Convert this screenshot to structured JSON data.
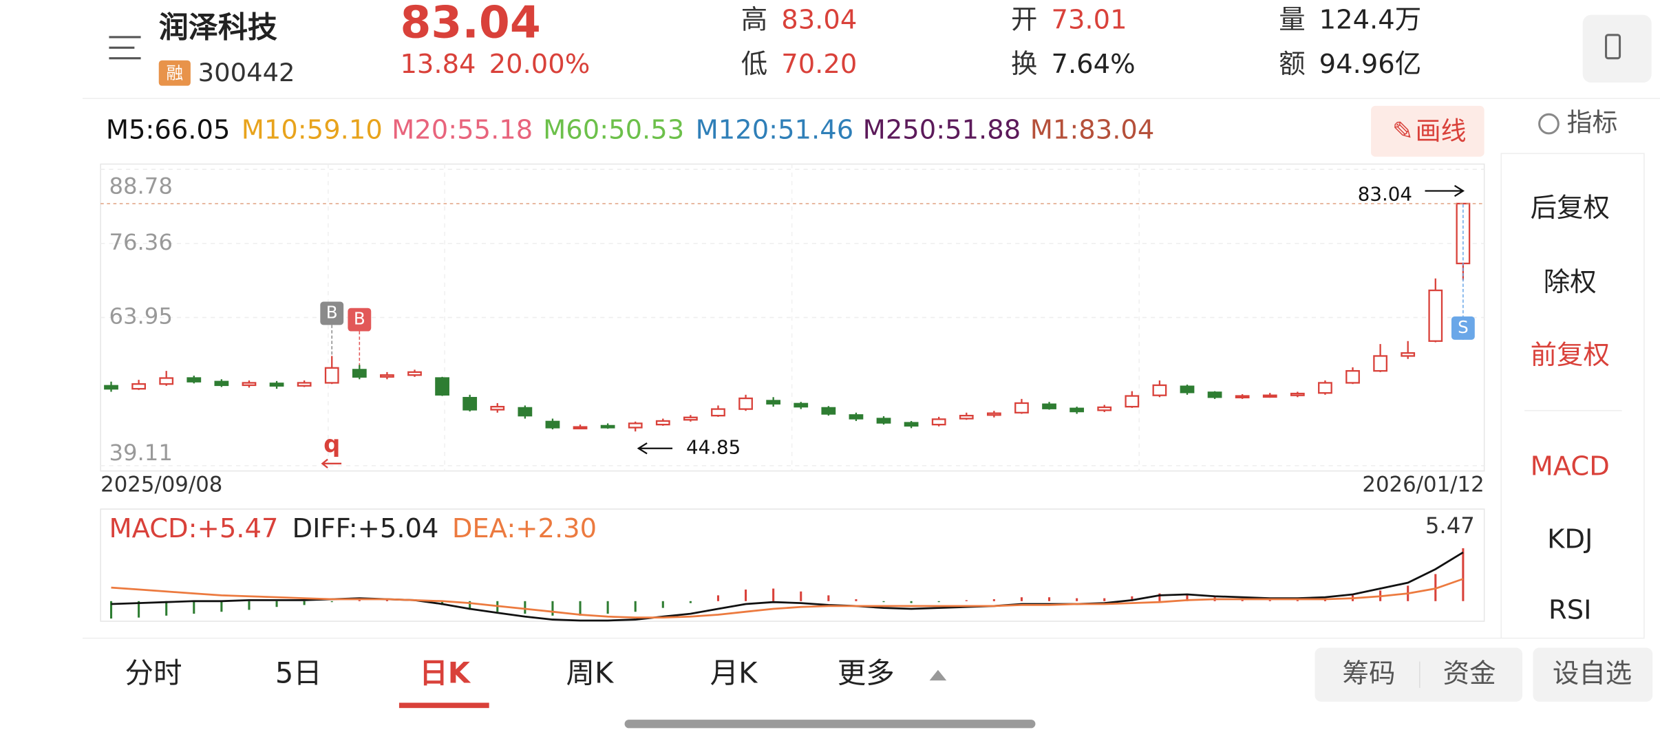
{
  "header": {
    "name": "润泽科技",
    "badge": "融",
    "code": "300442",
    "price": "83.04",
    "change": "13.84",
    "change_pct": "20.00%",
    "stats": [
      {
        "label": "高",
        "value": "83.04"
      },
      {
        "label": "低",
        "value": "70.20"
      },
      {
        "label": "开",
        "value": "73.01"
      },
      {
        "label": "换",
        "value": "7.64%"
      },
      {
        "label": "量",
        "value": "124.4万"
      },
      {
        "label": "额",
        "value": "94.96亿"
      }
    ]
  },
  "ma_legend": [
    {
      "text": "M5:66.05",
      "color": "#111111"
    },
    {
      "text": "M10:59.10",
      "color": "#e8a31c"
    },
    {
      "text": "M20:55.18",
      "color": "#e8647c"
    },
    {
      "text": "M60:50.53",
      "color": "#6cc04a"
    },
    {
      "text": "M120:51.46",
      "color": "#2f7fb8"
    },
    {
      "text": "M250:51.88",
      "color": "#5c1a5a"
    },
    {
      "text": "M1:83.04",
      "color": "#b5503a"
    }
  ],
  "draw_button": "画线",
  "indicator_button": "指标",
  "side_menu": [
    "后复权",
    "除权",
    "前复权",
    "MACD",
    "KDJ",
    "RSI"
  ],
  "tabs": [
    "分时",
    "5日",
    "日K",
    "周K",
    "月K",
    "更多"
  ],
  "bottom_buttons": [
    "筹码",
    "资金",
    "设自选"
  ],
  "chart_data": {
    "type": "candlestick",
    "x_labels": [
      "2025/09/08",
      "2026/01/12"
    ],
    "ylim": [
      39.11,
      88.78
    ],
    "yticks": [
      39.11,
      63.95,
      76.36,
      88.78
    ],
    "candles": [
      [
        52.5,
        52.0,
        53.2,
        51.5
      ],
      [
        52.0,
        52.8,
        53.5,
        51.8
      ],
      [
        52.8,
        53.8,
        55.0,
        52.5
      ],
      [
        53.8,
        53.2,
        54.2,
        52.9
      ],
      [
        53.2,
        52.6,
        53.6,
        52.3
      ],
      [
        52.6,
        53.0,
        53.4,
        52.2
      ],
      [
        52.9,
        52.5,
        53.3,
        52.0
      ],
      [
        52.5,
        53.0,
        53.4,
        52.3
      ],
      [
        53.0,
        55.5,
        57.5,
        52.8
      ],
      [
        55.2,
        54.0,
        56.0,
        53.6
      ],
      [
        54.0,
        54.3,
        54.8,
        53.6
      ],
      [
        54.3,
        54.8,
        55.2,
        54.0
      ],
      [
        53.8,
        51.0,
        54.0,
        50.8
      ],
      [
        50.5,
        48.5,
        51.0,
        48.2
      ],
      [
        48.5,
        49.0,
        49.6,
        48.0
      ],
      [
        48.8,
        47.5,
        49.2,
        47.0
      ],
      [
        46.5,
        45.5,
        47.0,
        45.2
      ],
      [
        45.6,
        45.6,
        46.0,
        45.3
      ],
      [
        45.8,
        45.5,
        46.2,
        45.3
      ],
      [
        45.5,
        46.2,
        46.5,
        44.85
      ],
      [
        46.0,
        46.6,
        47.0,
        45.8
      ],
      [
        46.8,
        47.2,
        47.6,
        46.5
      ],
      [
        47.5,
        48.6,
        49.2,
        47.3
      ],
      [
        48.6,
        50.4,
        51.0,
        48.3
      ],
      [
        50.0,
        49.5,
        50.6,
        49.0
      ],
      [
        49.5,
        49.0,
        49.8,
        48.6
      ],
      [
        48.8,
        47.8,
        49.1,
        47.5
      ],
      [
        47.6,
        47.0,
        48.0,
        46.6
      ],
      [
        47.0,
        46.3,
        47.4,
        46.0
      ],
      [
        46.3,
        45.8,
        46.6,
        45.4
      ],
      [
        46.0,
        46.9,
        47.3,
        45.7
      ],
      [
        47.0,
        47.5,
        48.0,
        46.8
      ],
      [
        47.6,
        47.9,
        48.3,
        47.2
      ],
      [
        48.0,
        49.6,
        50.3,
        47.8
      ],
      [
        49.4,
        48.7,
        49.8,
        48.5
      ],
      [
        48.7,
        48.2,
        49.0,
        47.8
      ],
      [
        48.4,
        48.9,
        49.3,
        48.1
      ],
      [
        49.0,
        50.8,
        51.6,
        48.8
      ],
      [
        50.9,
        52.6,
        53.4,
        50.6
      ],
      [
        52.4,
        51.4,
        52.7,
        51.0
      ],
      [
        51.4,
        50.6,
        51.6,
        50.3
      ],
      [
        50.6,
        50.8,
        51.1,
        50.3
      ],
      [
        50.8,
        50.9,
        51.3,
        50.5
      ],
      [
        50.9,
        51.2,
        51.5,
        50.6
      ],
      [
        51.3,
        53.0,
        53.4,
        51.0
      ],
      [
        53.0,
        55.0,
        55.6,
        52.8
      ],
      [
        55.0,
        57.5,
        59.5,
        54.8
      ],
      [
        57.5,
        58.0,
        60.0,
        57.0
      ],
      [
        60.0,
        68.5,
        70.5,
        59.8
      ],
      [
        73.01,
        83.04,
        83.04,
        70.2
      ]
    ],
    "annotations": [
      {
        "text": "83.04",
        "value": 83.04,
        "index": 49
      },
      {
        "text": "44.85",
        "value": 44.85,
        "index": 19
      }
    ],
    "signals": [
      {
        "text": "B",
        "index": 8,
        "color": "#8a8a8a"
      },
      {
        "text": "B",
        "index": 9,
        "color": "#e25858"
      },
      {
        "text": "S",
        "index": 49,
        "color": "#6aa7e8"
      },
      {
        "text": "q",
        "index": 8,
        "color": "#d9413a"
      }
    ],
    "macd": {
      "title": "MACD:+5.47",
      "diff_title": "DIFF:+5.04",
      "dea_title": "DEA:+2.30",
      "peak_label": "5.47",
      "ylim": [
        -2.08,
        9.52
      ],
      "hist": [
        -1.8,
        -1.7,
        -1.5,
        -1.3,
        -1.1,
        -0.9,
        -0.6,
        -0.4,
        -0.1,
        0.1,
        0.1,
        0.1,
        -0.4,
        -0.9,
        -1.1,
        -1.3,
        -1.5,
        -1.5,
        -1.3,
        -1.1,
        -0.7,
        -0.2,
        0.6,
        1.2,
        1.3,
        1.0,
        0.6,
        0.2,
        -0.1,
        -0.2,
        -0.1,
        0.1,
        0.2,
        0.4,
        0.4,
        0.3,
        0.3,
        0.5,
        0.8,
        0.7,
        0.4,
        0.2,
        0.1,
        0.1,
        0.2,
        0.6,
        1.1,
        1.6,
        2.8,
        5.47
      ],
      "diff": [
        -0.3,
        -0.2,
        -0.1,
        0.0,
        0.0,
        0.1,
        0.1,
        0.1,
        0.2,
        0.3,
        0.2,
        0.1,
        -0.3,
        -0.8,
        -1.2,
        -1.6,
        -1.9,
        -2.0,
        -2.0,
        -1.9,
        -1.6,
        -1.3,
        -0.8,
        -0.3,
        -0.1,
        -0.2,
        -0.4,
        -0.5,
        -0.7,
        -0.8,
        -0.7,
        -0.6,
        -0.5,
        -0.3,
        -0.3,
        -0.3,
        -0.2,
        0.1,
        0.6,
        0.7,
        0.5,
        0.4,
        0.3,
        0.3,
        0.4,
        0.7,
        1.3,
        1.9,
        3.3,
        5.04
      ],
      "dea": [
        1.4,
        1.2,
        1.0,
        0.8,
        0.6,
        0.5,
        0.4,
        0.3,
        0.2,
        0.2,
        0.2,
        0.1,
        0.0,
        -0.2,
        -0.5,
        -0.8,
        -1.1,
        -1.4,
        -1.6,
        -1.7,
        -1.7,
        -1.6,
        -1.4,
        -1.1,
        -0.8,
        -0.6,
        -0.5,
        -0.5,
        -0.5,
        -0.5,
        -0.5,
        -0.5,
        -0.5,
        -0.4,
        -0.4,
        -0.3,
        -0.3,
        -0.2,
        -0.1,
        0.1,
        0.2,
        0.2,
        0.2,
        0.2,
        0.2,
        0.3,
        0.5,
        0.8,
        1.3,
        2.3
      ]
    }
  }
}
